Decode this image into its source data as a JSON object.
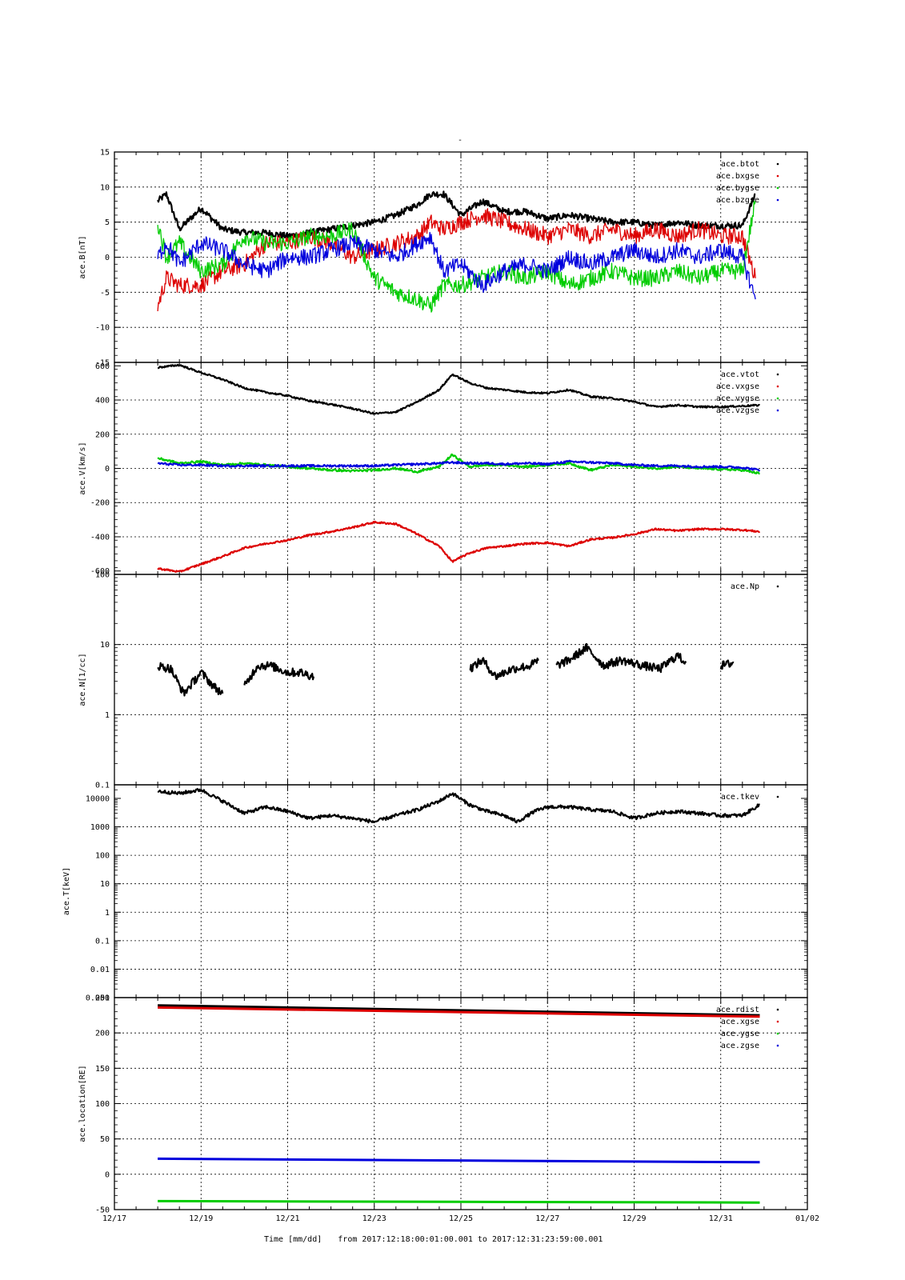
{
  "figure": {
    "title": "-",
    "xlabel": "Time [mm/dd]",
    "range_text": "from  2017:12:18:00:01:00.001   to   2017:12:31:23:59:00.001"
  },
  "chart_data": [
    {
      "type": "scatter",
      "ylabel": "ace.B[nT]",
      "ylim": [
        -15,
        15
      ],
      "yscale": "linear",
      "yticks": [
        -15,
        -10,
        -5,
        0,
        5,
        10,
        15
      ],
      "xlim": [
        "2017-12-17",
        "2018-01-02"
      ],
      "xticks": [
        "12/17",
        "12/19",
        "12/21",
        "12/23",
        "12/25",
        "12/27",
        "12/29",
        "12/31",
        "01/02"
      ],
      "grid": true,
      "legend_position": "top-right",
      "series": [
        {
          "name": "ace.btot",
          "color": "#000000",
          "x": [
            "12-18",
            "12-18.2",
            "12-18.5",
            "12-19",
            "12-19.5",
            "12-20",
            "12-20.5",
            "12-21",
            "12-21.5",
            "12-22",
            "12-22.5",
            "12-23",
            "12-23.5",
            "12-24",
            "12-24.3",
            "12-24.6",
            "12-25",
            "12-25.5",
            "12-26",
            "12-26.5",
            "12-27",
            "12-27.5",
            "12-28",
            "12-28.5",
            "12-29",
            "12-29.5",
            "12-30",
            "12-30.5",
            "12-31",
            "12-31.5",
            "12-31.8"
          ],
          "y": [
            8,
            9,
            4,
            7,
            4,
            3.5,
            3.5,
            3,
            3.5,
            4,
            4.5,
            5,
            6,
            7.5,
            9,
            9,
            6,
            8,
            6.5,
            6.5,
            5.5,
            6,
            5.5,
            5,
            5,
            4.5,
            5,
            4.5,
            4.5,
            4.5,
            9
          ]
        },
        {
          "name": "ace.bxgse",
          "color": "#dd0000",
          "x": [
            "12-18",
            "12-18.2",
            "12-18.5",
            "12-19",
            "12-19.5",
            "12-20",
            "12-20.5",
            "12-21",
            "12-21.5",
            "12-22",
            "12-22.5",
            "12-23",
            "12-23.5",
            "12-24",
            "12-24.3",
            "12-24.6",
            "12-25",
            "12-25.5",
            "12-26",
            "12-26.5",
            "12-27",
            "12-27.5",
            "12-28",
            "12-28.5",
            "12-29",
            "12-29.5",
            "12-30",
            "12-30.5",
            "12-31",
            "12-31.5",
            "12-31.8"
          ],
          "y": [
            -7,
            -3,
            -4,
            -4,
            -2,
            -1,
            2,
            2,
            3,
            2,
            0,
            1,
            2,
            3,
            5,
            4,
            5,
            6,
            5,
            4,
            3,
            4,
            3,
            4,
            3,
            4,
            3,
            4,
            3,
            3,
            -3
          ]
        },
        {
          "name": "ace.bygse",
          "color": "#00cc00",
          "x": [
            "12-18",
            "12-18.2",
            "12-18.5",
            "12-19",
            "12-19.5",
            "12-20",
            "12-20.5",
            "12-21",
            "12-21.5",
            "12-22",
            "12-22.5",
            "12-23",
            "12-23.5",
            "12-24",
            "12-24.3",
            "12-24.6",
            "12-25",
            "12-25.5",
            "12-26",
            "12-26.5",
            "12-27",
            "12-27.5",
            "12-28",
            "12-28.5",
            "12-29",
            "12-29.5",
            "12-30",
            "12-30.5",
            "12-31",
            "12-31.5",
            "12-31.8"
          ],
          "y": [
            5,
            0,
            2,
            -2,
            -1,
            3,
            2,
            2,
            3,
            3,
            4,
            -3,
            -5,
            -6,
            -7,
            -4,
            -4,
            -3,
            -2,
            -3,
            -2,
            -4,
            -3,
            -2,
            -3,
            -3,
            -2,
            -3,
            -2,
            -2,
            8
          ]
        },
        {
          "name": "ace.bzgse",
          "color": "#0000dd",
          "x": [
            "12-18",
            "12-18.2",
            "12-18.5",
            "12-19",
            "12-19.5",
            "12-20",
            "12-20.5",
            "12-21",
            "12-21.5",
            "12-22",
            "12-22.5",
            "12-23",
            "12-23.5",
            "12-24",
            "12-24.3",
            "12-24.6",
            "12-25",
            "12-25.5",
            "12-26",
            "12-26.5",
            "12-27",
            "12-27.5",
            "12-28",
            "12-28.5",
            "12-29",
            "12-29.5",
            "12-30",
            "12-30.5",
            "12-31",
            "12-31.5",
            "12-31.8"
          ],
          "y": [
            0,
            2,
            -1,
            2,
            1,
            -1,
            -2,
            0,
            0,
            1,
            2,
            1,
            0,
            2,
            3,
            -2,
            -1,
            -4,
            -2,
            -1,
            -2,
            0,
            -1,
            0,
            1,
            0,
            1,
            0,
            1,
            0,
            -6
          ]
        }
      ]
    },
    {
      "type": "scatter",
      "ylabel": "ace.V[km/s]",
      "ylim": [
        -620,
        620
      ],
      "yscale": "linear",
      "yticks": [
        -600,
        -400,
        -200,
        0,
        200,
        400,
        600
      ],
      "xlim": [
        "2017-12-17",
        "2018-01-02"
      ],
      "grid": true,
      "legend_position": "top-right",
      "series": [
        {
          "name": "ace.vtot",
          "color": "#000000",
          "x": [
            "12-18",
            "12-18.5",
            "12-19",
            "12-19.5",
            "12-20",
            "12-20.5",
            "12-21",
            "12-21.5",
            "12-22",
            "12-22.5",
            "12-23",
            "12-23.5",
            "12-24",
            "12-24.5",
            "12-24.8",
            "12-25.2",
            "12-25.6",
            "12-26",
            "12-26.5",
            "12-27",
            "12-27.5",
            "12-28",
            "12-28.5",
            "12-29",
            "12-29.5",
            "12-30",
            "12-30.5",
            "12-31",
            "12-31.5",
            "12-31.9"
          ],
          "y": [
            590,
            605,
            560,
            520,
            470,
            445,
            425,
            395,
            375,
            350,
            320,
            330,
            390,
            460,
            550,
            500,
            470,
            460,
            445,
            440,
            460,
            420,
            410,
            390,
            360,
            370,
            360,
            360,
            365,
            370
          ]
        },
        {
          "name": "ace.vxgse",
          "color": "#dd0000",
          "x": [
            "12-18",
            "12-18.5",
            "12-19",
            "12-19.5",
            "12-20",
            "12-20.5",
            "12-21",
            "12-21.5",
            "12-22",
            "12-22.5",
            "12-23",
            "12-23.5",
            "12-24",
            "12-24.5",
            "12-24.8",
            "12-25.2",
            "12-25.6",
            "12-26",
            "12-26.5",
            "12-27",
            "12-27.5",
            "12-28",
            "12-28.5",
            "12-29",
            "12-29.5",
            "12-30",
            "12-30.5",
            "12-31",
            "12-31.5",
            "12-31.9"
          ],
          "y": [
            -585,
            -605,
            -560,
            -515,
            -465,
            -440,
            -420,
            -390,
            -370,
            -345,
            -315,
            -325,
            -385,
            -455,
            -545,
            -495,
            -465,
            -455,
            -440,
            -435,
            -455,
            -415,
            -405,
            -385,
            -355,
            -365,
            -355,
            -355,
            -360,
            -370
          ]
        },
        {
          "name": "ace.vygse",
          "color": "#00cc00",
          "x": [
            "12-18",
            "12-18.5",
            "12-19",
            "12-19.5",
            "12-20",
            "12-20.5",
            "12-21",
            "12-21.5",
            "12-22",
            "12-22.5",
            "12-23",
            "12-23.5",
            "12-24",
            "12-24.5",
            "12-24.8",
            "12-25.2",
            "12-25.6",
            "12-26",
            "12-26.5",
            "12-27",
            "12-27.5",
            "12-28",
            "12-28.5",
            "12-29",
            "12-29.5",
            "12-30",
            "12-30.5",
            "12-31",
            "12-31.5",
            "12-31.9"
          ],
          "y": [
            60,
            30,
            40,
            20,
            30,
            20,
            10,
            0,
            -10,
            -15,
            -10,
            0,
            -20,
            10,
            80,
            10,
            20,
            20,
            10,
            20,
            30,
            -10,
            20,
            10,
            0,
            10,
            0,
            -5,
            -10,
            -30
          ]
        },
        {
          "name": "ace.vzgse",
          "color": "#0000dd",
          "x": [
            "12-18",
            "12-18.5",
            "12-19",
            "12-19.5",
            "12-20",
            "12-20.5",
            "12-21",
            "12-21.5",
            "12-22",
            "12-22.5",
            "12-23",
            "12-23.5",
            "12-24",
            "12-24.5",
            "12-24.8",
            "12-25.2",
            "12-25.6",
            "12-26",
            "12-26.5",
            "12-27",
            "12-27.5",
            "12-28",
            "12-28.5",
            "12-29",
            "12-29.5",
            "12-30",
            "12-30.5",
            "12-31",
            "12-31.5",
            "12-31.9"
          ],
          "y": [
            30,
            20,
            20,
            15,
            15,
            15,
            15,
            15,
            15,
            15,
            15,
            20,
            25,
            30,
            35,
            30,
            30,
            25,
            30,
            25,
            40,
            35,
            30,
            20,
            15,
            15,
            10,
            10,
            5,
            -10
          ]
        }
      ]
    },
    {
      "type": "scatter",
      "ylabel": "ace.N[1/cc]",
      "ylim": [
        0.1,
        100
      ],
      "yscale": "log",
      "yticks": [
        0.1,
        1,
        10,
        100
      ],
      "xlim": [
        "2017-12-17",
        "2018-01-02"
      ],
      "grid": true,
      "legend_position": "top-right",
      "series": [
        {
          "name": "ace.Np",
          "color": "#000000",
          "segments": [
            {
              "x": [
                "12-18",
                "12-18.3",
                "12-18.6",
                "12-19",
                "12-19.3",
                "12-19.5"
              ],
              "y": [
                5,
                4.5,
                2,
                4,
                2.5,
                2
              ]
            },
            {
              "x": [
                "12-20",
                "12-20.3",
                "12-20.6",
                "12-21",
                "12-21.3",
                "12-21.6"
              ],
              "y": [
                2.5,
                5,
                5,
                4,
                4,
                3.5
              ]
            },
            {
              "x": [
                "12-25.2",
                "12-25.5",
                "12-25.8",
                "12-26.2",
                "12-26.6",
                "12-26.8"
              ],
              "y": [
                4.5,
                6,
                3.5,
                4.5,
                5,
                6
              ]
            },
            {
              "x": [
                "12-27.2",
                "12-27.5",
                "12-27.9",
                "12-28.3",
                "12-28.7",
                "12-29.2",
                "12-29.6",
                "12-30",
                "12-30.2"
              ],
              "y": [
                5,
                6,
                9,
                5,
                6,
                5,
                4.5,
                7,
                5.5
              ]
            },
            {
              "x": [
                "12-31",
                "12-31.3"
              ],
              "y": [
                5,
                5.5
              ]
            }
          ]
        }
      ]
    },
    {
      "type": "scatter",
      "ylabel": "ace.T[keV]",
      "ylim": [
        0.001,
        30000
      ],
      "yscale": "log",
      "yticks": [
        0.001,
        0.01,
        0.1,
        1,
        10,
        100,
        1000,
        10000
      ],
      "xlim": [
        "2017-12-17",
        "2018-01-02"
      ],
      "grid": true,
      "legend_position": "top-right",
      "series": [
        {
          "name": "ace.tkev",
          "color": "#000000",
          "x": [
            "12-18",
            "12-18.5",
            "12-19",
            "12-19.5",
            "12-20",
            "12-20.5",
            "12-21",
            "12-21.5",
            "12-22",
            "12-22.5",
            "12-23",
            "12-23.5",
            "12-24",
            "12-24.5",
            "12-24.8",
            "12-25.2",
            "12-25.6",
            "12-26",
            "12-26.3",
            "12-26.7",
            "12-27",
            "12-27.5",
            "12-28",
            "12-28.5",
            "12-29",
            "12-29.5",
            "12-30",
            "12-30.5",
            "12-31",
            "12-31.5",
            "12-31.9"
          ],
          "y": [
            18000,
            15000,
            20000,
            8000,
            3000,
            5000,
            3500,
            2000,
            2500,
            2000,
            1500,
            2500,
            4000,
            8000,
            15000,
            6000,
            3500,
            2500,
            1500,
            3500,
            5000,
            5000,
            4000,
            3500,
            2000,
            3000,
            3500,
            3000,
            2500,
            2500,
            6000
          ]
        }
      ]
    },
    {
      "type": "scatter",
      "ylabel": "ace.location[RE]",
      "ylim": [
        -50,
        250
      ],
      "yscale": "linear",
      "yticks": [
        -50,
        0,
        50,
        100,
        150,
        200,
        250
      ],
      "xlim": [
        "2017-12-17",
        "2018-01-02"
      ],
      "grid": true,
      "legend_position": "top-right",
      "series": [
        {
          "name": "ace.rdist",
          "color": "#000000",
          "x": [
            "12-18",
            "12-31.9"
          ],
          "y": [
            239,
            225
          ]
        },
        {
          "name": "ace.xgse",
          "color": "#dd0000",
          "x": [
            "12-18",
            "12-31.9"
          ],
          "y": [
            236,
            223
          ]
        },
        {
          "name": "ace.ygse",
          "color": "#00cc00",
          "x": [
            "12-18",
            "12-31.9"
          ],
          "y": [
            -38,
            -40
          ]
        },
        {
          "name": "ace.zgse",
          "color": "#0000dd",
          "x": [
            "12-18",
            "12-31.9"
          ],
          "y": [
            22,
            17
          ]
        }
      ]
    }
  ]
}
